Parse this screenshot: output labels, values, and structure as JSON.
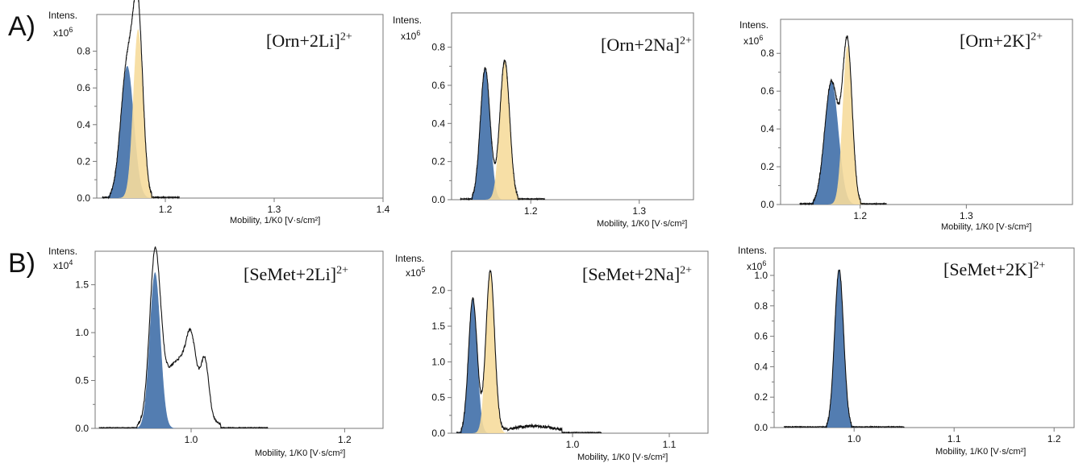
{
  "rows": [
    {
      "label": "A)"
    },
    {
      "label": "B)"
    }
  ],
  "colors": {
    "blue": "#4a76ad",
    "yellow": "#f6dc9c",
    "line": "#111111",
    "axis": "#777777"
  },
  "chart_data": [
    {
      "type": "area",
      "intens_label": "Intens.",
      "multiplier_base": "x10",
      "multiplier_exp": "6",
      "species": "[Orn+2Li]",
      "charge": "2+",
      "xlabel": "Mobility,  1/K0 [V·s/cm²]",
      "xlim": [
        1.137,
        1.4
      ],
      "ylim": [
        0,
        1.0
      ],
      "xticks": [
        1.2,
        1.3,
        1.4
      ],
      "xtick_labels": [
        "1.2",
        "1.3",
        "1.4"
      ],
      "yticks": [
        0,
        0.2,
        0.4,
        0.6,
        0.8
      ],
      "ytick_labels": [
        "0.0",
        "0.2",
        "0.4",
        "0.6",
        "0.8"
      ],
      "trace_start": 1.142,
      "trace_end": 1.213,
      "series": [
        {
          "color": "blue",
          "center": 1.165,
          "height": 0.72,
          "sigma": 0.006
        },
        {
          "color": "yellow",
          "center": 1.175,
          "height": 0.92,
          "sigma": 0.0045
        }
      ]
    },
    {
      "type": "area",
      "intens_label": "Intens.",
      "multiplier_base": "x10",
      "multiplier_exp": "6",
      "species": "[Orn+2Na]",
      "charge": "2+",
      "xlabel": "Mobility,  1/K0 [V·s/cm²]",
      "xlim": [
        1.127,
        1.35
      ],
      "ylim": [
        0,
        0.98
      ],
      "xticks": [
        1.2,
        1.3
      ],
      "xtick_labels": [
        "1.2",
        "1.3"
      ],
      "yticks": [
        0,
        0.2,
        0.4,
        0.6,
        0.8
      ],
      "ytick_labels": [
        "0.0",
        "0.2",
        "0.4",
        "0.6",
        "0.8"
      ],
      "trace_start": 1.135,
      "trace_end": 1.213,
      "series": [
        {
          "color": "blue",
          "center": 1.158,
          "height": 0.69,
          "sigma": 0.0045
        },
        {
          "color": "yellow",
          "center": 1.176,
          "height": 0.73,
          "sigma": 0.0045
        }
      ]
    },
    {
      "type": "area",
      "intens_label": "Intens.",
      "multiplier_base": "x10",
      "multiplier_exp": "6",
      "species": "[Orn+2K]",
      "charge": "2+",
      "xlabel": "Mobility,  1/K0 [V·s/cm²]",
      "xlim": [
        1.125,
        1.4
      ],
      "ylim": [
        0,
        0.98
      ],
      "xticks": [
        1.2,
        1.3
      ],
      "xtick_labels": [
        "1.2",
        "1.3"
      ],
      "yticks": [
        0,
        0.2,
        0.4,
        0.6,
        0.8
      ],
      "ytick_labels": [
        "0.0",
        "0.2",
        "0.4",
        "0.6",
        "0.8"
      ],
      "trace_start": 1.143,
      "trace_end": 1.225,
      "series": [
        {
          "color": "blue",
          "center": 1.173,
          "height": 0.65,
          "sigma": 0.0065
        },
        {
          "color": "yellow",
          "center": 1.188,
          "height": 0.84,
          "sigma": 0.0045
        }
      ]
    },
    {
      "type": "area",
      "intens_label": "Intens.",
      "multiplier_base": "x10",
      "multiplier_exp": "4",
      "species": "[SeMet+2Li]",
      "charge": "2+",
      "xlabel": "Mobility,  1/K0 [V·s/cm²]",
      "xlim": [
        0.875,
        1.25
      ],
      "ylim": [
        0,
        1.85
      ],
      "xticks": [
        1.0,
        1.2
      ],
      "xtick_labels": [
        "1.0",
        "1.2"
      ],
      "yticks": [
        0,
        0.5,
        1.0,
        1.5
      ],
      "ytick_labels": [
        "0.0",
        "0.5",
        "1.0",
        "1.5"
      ],
      "trace_start": 0.88,
      "trace_end": 1.1,
      "series": [
        {
          "color": "blue",
          "center": 0.953,
          "height": 1.63,
          "sigma": 0.007
        },
        {
          "color": "none",
          "center": 0.985,
          "height": 0.72,
          "sigma": 0.022
        },
        {
          "color": "none",
          "center": 1.0,
          "height": 0.45,
          "sigma": 0.006
        },
        {
          "color": "none",
          "center": 1.018,
          "height": 0.5,
          "sigma": 0.005
        }
      ]
    },
    {
      "type": "area",
      "intens_label": "Intens.",
      "multiplier_base": "x10",
      "multiplier_exp": "5",
      "species": "[SeMet+2Na]",
      "charge": "2+",
      "xlabel": "Mobility,  1/K0 [V·s/cm²]",
      "xlim": [
        0.875,
        1.14
      ],
      "ylim": [
        0,
        2.55
      ],
      "xticks": [
        1.0,
        1.1
      ],
      "xtick_labels": [
        "1.0",
        "1.1"
      ],
      "yticks": [
        0,
        0.5,
        1.0,
        1.5,
        2.0
      ],
      "ytick_labels": [
        "0.0",
        "0.5",
        "1.0",
        "1.5",
        "2.0"
      ],
      "trace_start": 0.88,
      "trace_end": 1.03,
      "series": [
        {
          "color": "blue",
          "center": 0.897,
          "height": 1.88,
          "sigma": 0.0045
        },
        {
          "color": "yellow",
          "center": 0.915,
          "height": 2.25,
          "sigma": 0.0045
        },
        {
          "color": "none",
          "center": 0.96,
          "height": 0.1,
          "sigma": 0.025
        }
      ]
    },
    {
      "type": "area",
      "intens_label": "Intens.",
      "multiplier_base": "x10",
      "multiplier_exp": "6",
      "species": "[SeMet+2K]",
      "charge": "2+",
      "xlabel": "Mobility,  1/K0 [V·s/cm²]",
      "xlim": [
        0.92,
        1.22
      ],
      "ylim": [
        0,
        1.18
      ],
      "xticks": [
        1.0,
        1.1,
        1.2
      ],
      "xtick_labels": [
        "1.0",
        "1.1",
        "1.2"
      ],
      "yticks": [
        0,
        0.2,
        0.4,
        0.6,
        0.8,
        1.0
      ],
      "ytick_labels": [
        "0.0",
        "0.2",
        "0.4",
        "0.6",
        "0.8",
        "1.0"
      ],
      "trace_start": 0.93,
      "trace_end": 1.05,
      "series": [
        {
          "color": "blue",
          "center": 0.985,
          "height": 1.04,
          "sigma": 0.0045
        }
      ]
    }
  ]
}
